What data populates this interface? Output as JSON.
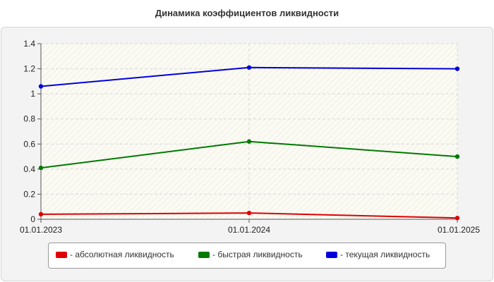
{
  "chart_data": {
    "type": "line",
    "title": "Динамика коэффициентов ликвидности",
    "categories": [
      "01.01.2023",
      "01.01.2024",
      "01.01.2025"
    ],
    "ylim": [
      0,
      1.4
    ],
    "yticks": [
      "0",
      "0.2",
      "0.4",
      "0.6",
      "0.8",
      "1",
      "1.2",
      "1.4"
    ],
    "grid": true,
    "legend_position": "bottom",
    "series": [
      {
        "name": "- абсолютная ликвидность",
        "color": "#e00000",
        "values": [
          0.04,
          0.05,
          0.01
        ]
      },
      {
        "name": "- быстрая ликвидность",
        "color": "#007a00",
        "values": [
          0.41,
          0.62,
          0.5
        ]
      },
      {
        "name": "- текущая ликвидность",
        "color": "#0000dd",
        "values": [
          1.06,
          1.21,
          1.2
        ]
      }
    ]
  }
}
